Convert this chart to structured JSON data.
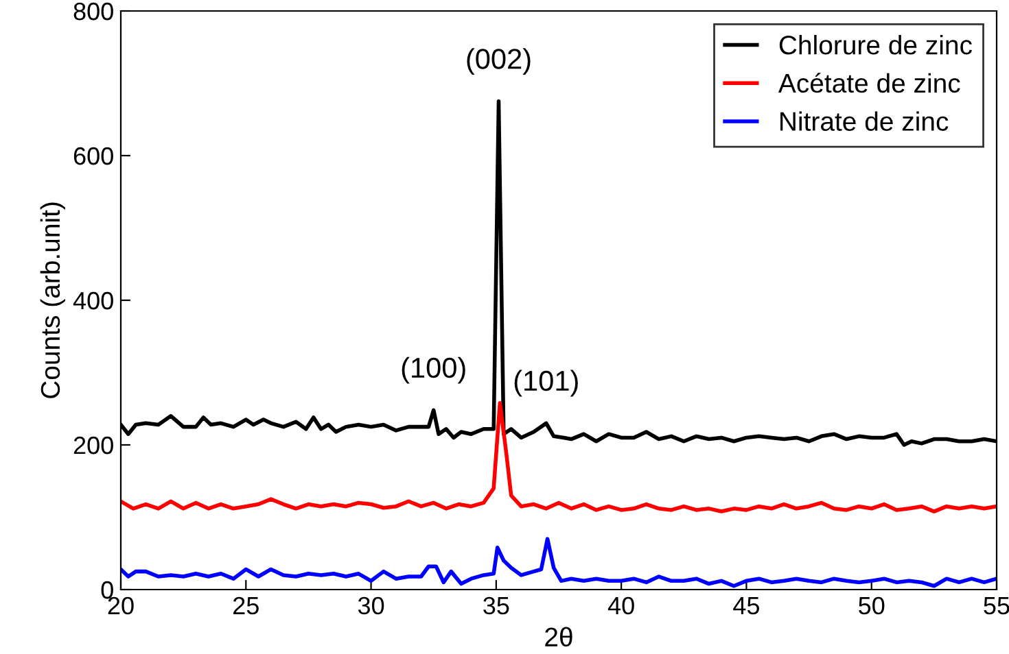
{
  "chart_data": {
    "type": "line",
    "xlabel": "2θ",
    "ylabel": "Counts (arb.unit)",
    "xlim": [
      20,
      55
    ],
    "ylim": [
      0,
      800
    ],
    "xticks": [
      20,
      25,
      30,
      35,
      40,
      45,
      50,
      55
    ],
    "yticks": [
      0,
      200,
      400,
      600,
      800
    ],
    "grid": false,
    "legend": "top right",
    "marker": "none",
    "line_style": "solid",
    "series": [
      {
        "name": "Chlorure de zinc",
        "color": "#000000",
        "x": [
          20,
          20.3,
          20.6,
          21,
          21.5,
          22,
          22.5,
          23,
          23.3,
          23.6,
          24,
          24.5,
          25,
          25.3,
          25.7,
          26,
          26.5,
          27,
          27.4,
          27.7,
          28,
          28.3,
          28.6,
          29,
          29.5,
          30,
          30.5,
          31,
          31.5,
          32,
          32.3,
          32.5,
          32.7,
          33,
          33.3,
          33.6,
          34,
          34.5,
          34.9,
          35.1,
          35.3,
          35.6,
          36,
          36.5,
          37,
          37.3,
          37.7,
          38,
          38.5,
          39,
          39.5,
          40,
          40.5,
          41,
          41.5,
          42,
          42.5,
          43,
          43.5,
          44,
          44.5,
          45,
          45.5,
          46,
          46.5,
          47,
          47.5,
          48,
          48.5,
          49,
          49.5,
          50,
          50.5,
          51,
          51.3,
          51.6,
          52,
          52.5,
          53,
          53.5,
          54,
          54.5,
          55
        ],
        "values": [
          228,
          215,
          228,
          230,
          228,
          240,
          225,
          225,
          238,
          228,
          230,
          225,
          235,
          228,
          235,
          230,
          225,
          232,
          222,
          238,
          222,
          228,
          218,
          225,
          228,
          225,
          228,
          220,
          225,
          225,
          225,
          248,
          215,
          222,
          210,
          218,
          215,
          222,
          222,
          675,
          215,
          222,
          210,
          218,
          230,
          212,
          210,
          208,
          215,
          205,
          215,
          210,
          210,
          218,
          208,
          212,
          205,
          212,
          208,
          210,
          205,
          210,
          212,
          210,
          208,
          210,
          205,
          212,
          215,
          208,
          212,
          210,
          210,
          215,
          200,
          205,
          202,
          208,
          208,
          205,
          205,
          208,
          205
        ]
      },
      {
        "name": "Acétate de zinc",
        "color": "#ff0000",
        "x": [
          20,
          20.5,
          21,
          21.5,
          22,
          22.5,
          23,
          23.5,
          24,
          24.5,
          25,
          25.5,
          26,
          26.5,
          27,
          27.5,
          28,
          28.5,
          29,
          29.5,
          30,
          30.5,
          31,
          31.5,
          32,
          32.5,
          33,
          33.5,
          34,
          34.5,
          34.9,
          35.15,
          35.4,
          35.6,
          36,
          36.5,
          37,
          37.5,
          38,
          38.5,
          39,
          39.5,
          40,
          40.5,
          41,
          41.5,
          42,
          42.5,
          43,
          43.5,
          44,
          44.5,
          45,
          45.5,
          46,
          46.5,
          47,
          47.5,
          48,
          48.5,
          49,
          49.5,
          50,
          50.5,
          51,
          51.5,
          52,
          52.5,
          53,
          53.5,
          54,
          54.5,
          55
        ],
        "values": [
          122,
          112,
          118,
          112,
          122,
          112,
          120,
          112,
          118,
          112,
          115,
          118,
          125,
          118,
          112,
          118,
          115,
          118,
          115,
          120,
          118,
          113,
          115,
          122,
          115,
          120,
          112,
          118,
          115,
          120,
          140,
          258,
          190,
          130,
          115,
          118,
          112,
          120,
          112,
          118,
          110,
          115,
          110,
          112,
          118,
          112,
          110,
          115,
          110,
          112,
          108,
          112,
          110,
          115,
          112,
          118,
          112,
          115,
          120,
          112,
          110,
          115,
          112,
          118,
          110,
          112,
          115,
          108,
          115,
          112,
          115,
          112,
          115
        ]
      },
      {
        "name": "Nitrate de zinc",
        "color": "#0000ff",
        "x": [
          20,
          20.3,
          20.6,
          21,
          21.5,
          22,
          22.5,
          23,
          23.5,
          24,
          24.5,
          25,
          25.5,
          26,
          26.5,
          27,
          27.5,
          28,
          28.5,
          29,
          29.5,
          30,
          30.5,
          31,
          31.5,
          32,
          32.3,
          32.6,
          32.9,
          33.2,
          33.6,
          34,
          34.5,
          34.9,
          35.05,
          35.3,
          35.6,
          36,
          36.5,
          36.8,
          37.05,
          37.3,
          37.6,
          38,
          38.5,
          39,
          39.5,
          40,
          40.5,
          41,
          41.5,
          42,
          42.5,
          43,
          43.5,
          44,
          44.5,
          45,
          45.5,
          46,
          46.5,
          47,
          47.5,
          48,
          48.5,
          49,
          49.5,
          50,
          50.5,
          51,
          51.5,
          52,
          52.5,
          53,
          53.5,
          54,
          54.5,
          55
        ],
        "values": [
          28,
          18,
          25,
          25,
          18,
          20,
          18,
          22,
          18,
          22,
          15,
          28,
          18,
          28,
          20,
          18,
          22,
          20,
          22,
          18,
          22,
          12,
          25,
          15,
          18,
          18,
          32,
          32,
          10,
          25,
          8,
          15,
          20,
          22,
          58,
          40,
          30,
          20,
          25,
          28,
          70,
          30,
          12,
          15,
          12,
          15,
          12,
          12,
          15,
          10,
          18,
          12,
          12,
          15,
          8,
          12,
          5,
          12,
          15,
          10,
          12,
          15,
          12,
          10,
          15,
          12,
          10,
          12,
          15,
          10,
          12,
          10,
          5,
          15,
          10,
          15,
          10,
          15
        ]
      }
    ],
    "annotations": [
      {
        "text": "(002)",
        "x": 35.1,
        "y": 675
      },
      {
        "text": "(100)",
        "x": 32.5,
        "y": 248
      },
      {
        "text": "(101)",
        "x": 37,
        "y": 230
      }
    ]
  }
}
